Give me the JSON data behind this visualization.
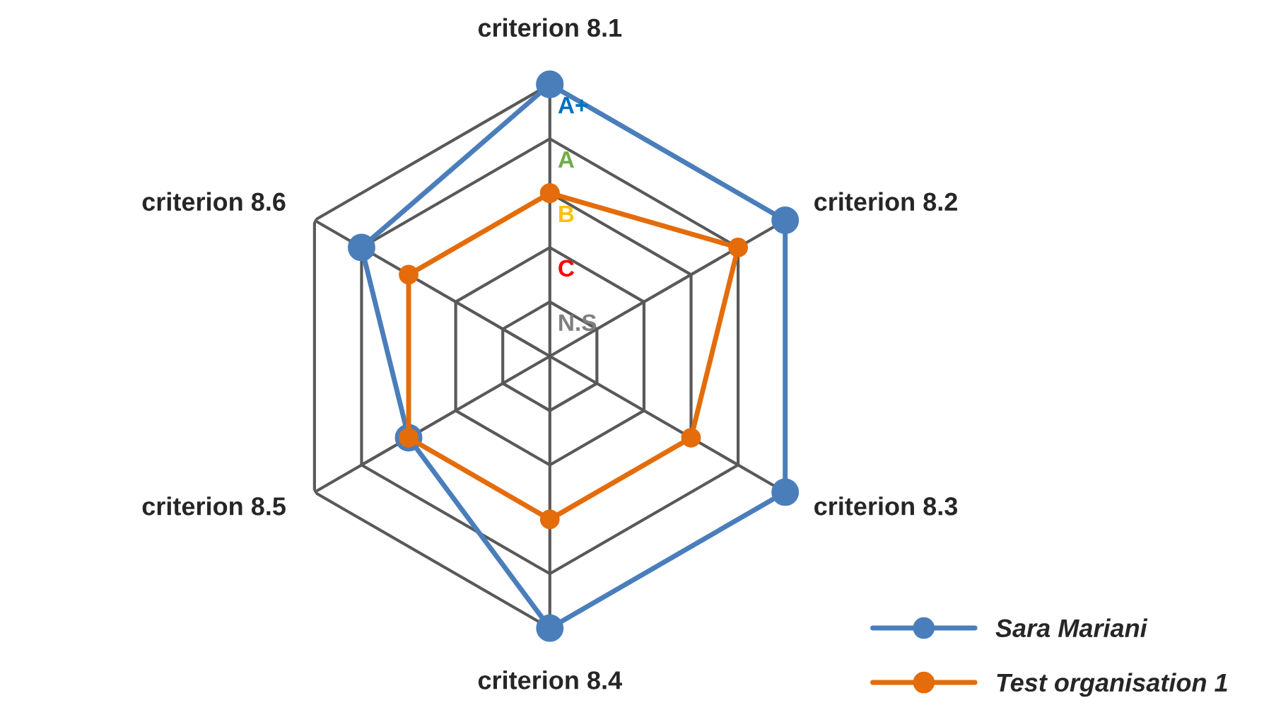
{
  "chart_data": {
    "type": "radar",
    "categories": [
      "criterion 8.1",
      "criterion 8.2",
      "criterion 8.3",
      "criterion 8.4",
      "criterion 8.5",
      "criterion 8.6"
    ],
    "series": [
      {
        "name": "Sara Mariani",
        "color": "#4a7ebb",
        "values": [
          5,
          5,
          5,
          5,
          3,
          4
        ]
      },
      {
        "name": "Test organisation 1",
        "color": "#e46c0a",
        "values": [
          3,
          4,
          3,
          3,
          3,
          3
        ]
      }
    ],
    "ylim": [
      0,
      5
    ],
    "yticks": [
      {
        "value": 1,
        "label": "N.S"
      },
      {
        "value": 2,
        "label": "C"
      },
      {
        "value": 3,
        "label": "B"
      },
      {
        "value": 4,
        "label": "A"
      },
      {
        "value": 5,
        "label": "A+"
      }
    ],
    "marker": "circle",
    "line_style": "solid",
    "grid": true,
    "legend": "bottom right"
  }
}
